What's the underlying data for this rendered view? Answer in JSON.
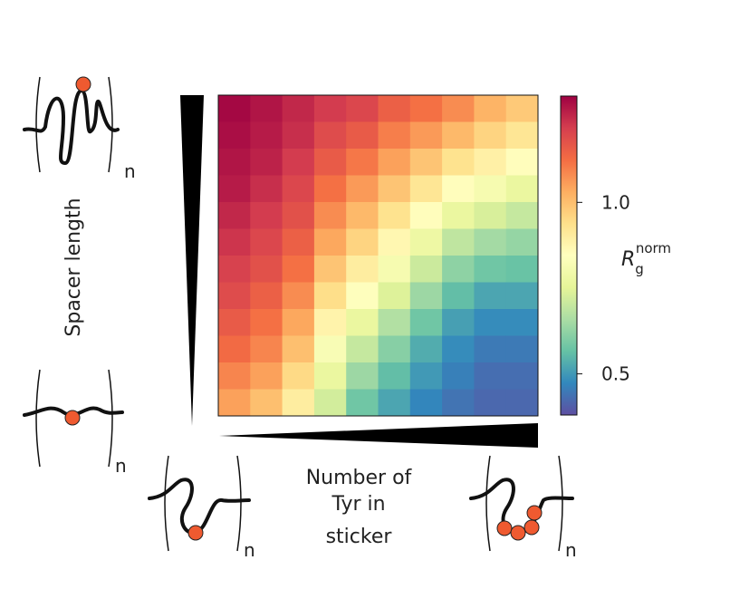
{
  "chart_data": {
    "type": "heatmap",
    "y_label": "Spacer length",
    "x_label": [
      "Number of",
      "Tyr in",
      "sticker"
    ],
    "repeat_label": "n",
    "colorbar_label": {
      "base": "R",
      "sub": "g",
      "sup": "norm"
    },
    "colormap": "Spectral_r",
    "clim": [
      0.38,
      1.31
    ],
    "cticks": [
      0.5,
      {
        "value": 1.0,
        "label": "1.0"
      }
    ],
    "z": [
      [
        1.3,
        1.28,
        1.25,
        1.22,
        1.2,
        1.15,
        1.12,
        1.08,
        1.02,
        0.98
      ],
      [
        1.29,
        1.27,
        1.24,
        1.19,
        1.16,
        1.1,
        1.06,
        1.01,
        0.96,
        0.92
      ],
      [
        1.28,
        1.26,
        1.22,
        1.16,
        1.11,
        1.05,
        0.99,
        0.93,
        0.89,
        0.85
      ],
      [
        1.27,
        1.24,
        1.2,
        1.12,
        1.06,
        0.99,
        0.92,
        0.85,
        0.81,
        0.77
      ],
      [
        1.25,
        1.22,
        1.18,
        1.08,
        1.01,
        0.93,
        0.85,
        0.77,
        0.73,
        0.7
      ],
      [
        1.23,
        1.2,
        1.15,
        1.04,
        0.96,
        0.87,
        0.78,
        0.69,
        0.65,
        0.63
      ],
      [
        1.21,
        1.18,
        1.12,
        0.99,
        0.9,
        0.81,
        0.71,
        0.62,
        0.58,
        0.57
      ],
      [
        1.19,
        1.15,
        1.08,
        0.94,
        0.84,
        0.74,
        0.64,
        0.56,
        0.52,
        0.52
      ],
      [
        1.16,
        1.12,
        1.04,
        0.88,
        0.77,
        0.67,
        0.58,
        0.51,
        0.48,
        0.48
      ],
      [
        1.13,
        1.09,
        1.0,
        0.82,
        0.7,
        0.61,
        0.53,
        0.48,
        0.45,
        0.45
      ],
      [
        1.09,
        1.05,
        0.95,
        0.77,
        0.64,
        0.56,
        0.5,
        0.46,
        0.43,
        0.43
      ],
      [
        1.05,
        1.0,
        0.9,
        0.72,
        0.58,
        0.52,
        0.47,
        0.44,
        0.42,
        0.42
      ]
    ]
  }
}
